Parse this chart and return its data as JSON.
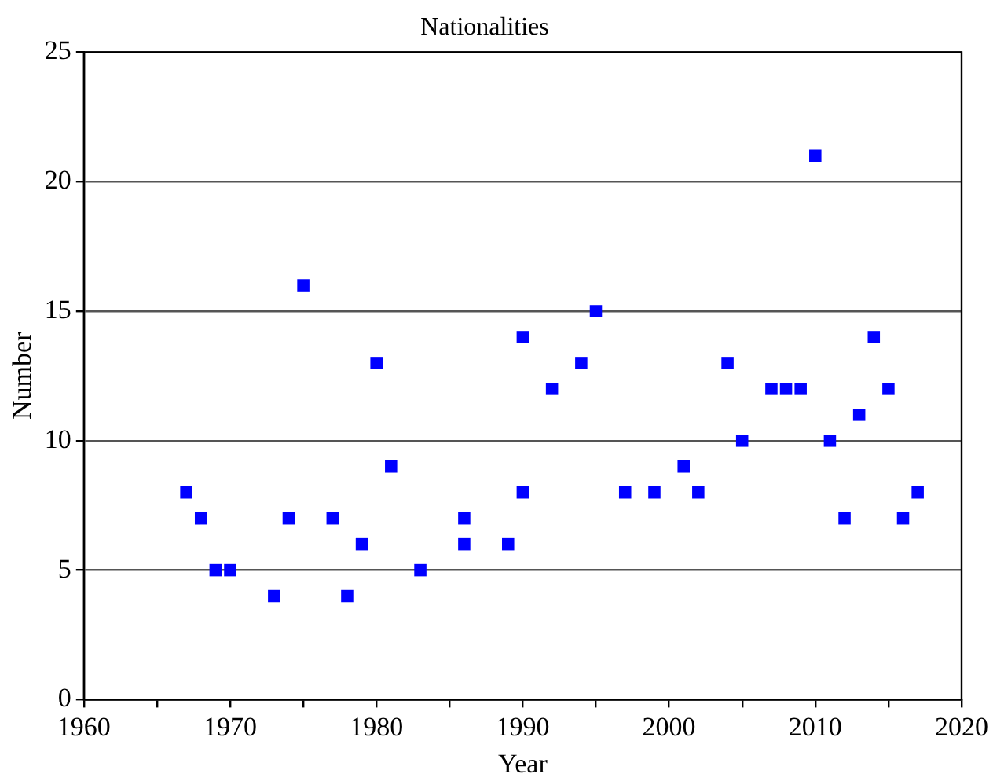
{
  "chart_data": {
    "type": "scatter",
    "title": "Nationalities",
    "xlabel": "Year",
    "ylabel": "Number",
    "x": [
      1967,
      1968,
      1969,
      1970,
      1973,
      1974,
      1975,
      1977,
      1978,
      1979,
      1980,
      1981,
      1983,
      1986,
      1986,
      1989,
      1990,
      1990,
      1992,
      1994,
      1995,
      1997,
      1999,
      2001,
      2002,
      2004,
      2005,
      2007,
      2008,
      2009,
      2010,
      2011,
      2012,
      2013,
      2014,
      2015,
      2016,
      2017
    ],
    "values": [
      8,
      7,
      5,
      5,
      4,
      7,
      16,
      7,
      4,
      6,
      13,
      9,
      5,
      6,
      7,
      6,
      14,
      8,
      12,
      13,
      15,
      8,
      8,
      9,
      8,
      13,
      10,
      12,
      12,
      12,
      21,
      10,
      7,
      11,
      14,
      12,
      7,
      8
    ],
    "color": "#0000ff",
    "marker": "square",
    "xlim": [
      1960,
      2020
    ],
    "xticks": [
      1960,
      {
        "value": 1965,
        "label": null
      },
      1970,
      {
        "value": 1975,
        "label": null
      },
      1980,
      {
        "value": 1985,
        "label": null
      },
      1990,
      {
        "value": 1995,
        "label": null
      },
      2000,
      {
        "value": 2005,
        "label": null
      },
      2010,
      {
        "value": 2015,
        "label": null
      },
      2020
    ],
    "ylim": [
      0,
      25
    ],
    "yticks": [
      0,
      5,
      10,
      15,
      20,
      25
    ],
    "grid": "y",
    "legend": false
  }
}
